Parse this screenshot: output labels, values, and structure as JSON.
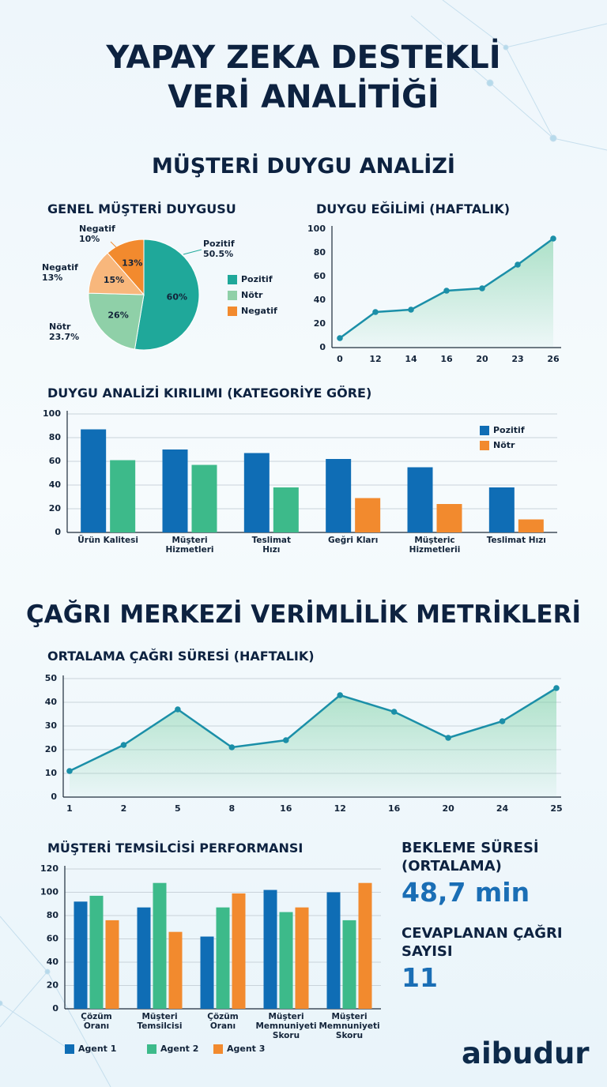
{
  "header": {
    "title": "YAPAY ZEKA DESTEKLİ\nVERİ ANALİTİĞİ"
  },
  "sections": [
    "MÜŞTERİ DUYGU ANALİZİ",
    "ÇAĞRI MERKEZİ VERİMLİLİK METRİKLERİ"
  ],
  "chart_data": [
    {
      "type": "pie",
      "title": "GENEL MÜŞTERİ DUYGUSU",
      "categories": [
        "Pozitif",
        "Nötr",
        "Negatif",
        "Negatif"
      ],
      "values": [
        60,
        26,
        15,
        13
      ],
      "value_labels": [
        "60%",
        "26%",
        "15%",
        "13%"
      ],
      "slice_notes": [
        "50.5%",
        "23.7%",
        "13%",
        "10%"
      ],
      "colors": [
        "#1fa89a",
        "#8fd0a8",
        "#f8b77c",
        "#f28a2e"
      ],
      "legend": [
        {
          "name": "Pozitif",
          "color": "#1fa89a"
        },
        {
          "name": "Nötr",
          "color": "#8fd0a8"
        },
        {
          "name": "Negatif",
          "color": "#f28a2e"
        }
      ]
    },
    {
      "type": "line",
      "title": "DUYGU EĞİLİMİ (HAFTALIK)",
      "categories": [
        "0",
        "12",
        "14",
        "16",
        "20",
        "23",
        "26"
      ],
      "values": [
        8,
        30,
        32,
        48,
        50,
        70,
        92
      ],
      "color": "#1b8fa8",
      "ylim": [
        0,
        100
      ],
      "yticks": [
        0,
        20,
        40,
        60,
        80,
        100
      ],
      "grid": false
    },
    {
      "type": "bar",
      "title": "DUYGU ANALİZİ KIRILIMI (KATEGORİYE GÖRE)",
      "categories": [
        "Ürün Kalitesi",
        "Müşteri\nHizmetleri",
        "Teslimat\nHızı",
        "Geğri Kları",
        "Müşteric\nHizmetlerii",
        "Teslimat Hızı"
      ],
      "series": [
        {
          "name": "Pozitif",
          "color": "#0f6db5",
          "values": [
            87,
            70,
            67,
            62,
            55,
            38
          ]
        },
        {
          "name": "Nötr",
          "color": "#f28a2e",
          "values": [
            61,
            57,
            38,
            29,
            24,
            11
          ],
          "colors": [
            "#3dba8a",
            "#3dba8a",
            "#3dba8a",
            "#f28a2e",
            "#f28a2e",
            "#f28a2e"
          ]
        }
      ],
      "ylim": [
        0,
        100
      ],
      "yticks": [
        0,
        20,
        40,
        60,
        80,
        100
      ],
      "grid": true
    },
    {
      "type": "line",
      "title": "ORTALAMA ÇAĞRI SÜRESİ (HAFTALIK)",
      "categories": [
        "1",
        "2",
        "5",
        "8",
        "16",
        "12",
        "16",
        "20",
        "24",
        "25"
      ],
      "values": [
        11,
        22,
        37,
        21,
        24,
        43,
        36,
        25,
        32,
        46
      ],
      "color": "#1b8fa8",
      "ylim": [
        0,
        50
      ],
      "yticks": [
        0,
        10,
        20,
        30,
        40,
        50
      ],
      "grid": true
    },
    {
      "type": "bar",
      "title": "MÜŞTERİ TEMSİLCİSİ PERFORMANSI",
      "categories": [
        "Çözüm\nOranı",
        "Müşteri\nTemsilcisi",
        "Çözüm\nOranı",
        "Müşteri\nMemnuniyeti\nSkoru",
        "Müşteri\nMemnuniyeti\nSkoru"
      ],
      "series": [
        {
          "name": "Agent 1",
          "color": "#0f6db5",
          "values": [
            92,
            87,
            62,
            102,
            100
          ]
        },
        {
          "name": "Agent 2",
          "color": "#3dba8a",
          "values": [
            97,
            108,
            87,
            83,
            76
          ]
        },
        {
          "name": "Agent 3",
          "color": "#f28a2e",
          "values": [
            76,
            66,
            99,
            87,
            108
          ]
        }
      ],
      "ylim": [
        0,
        120
      ],
      "yticks": [
        0,
        20,
        40,
        60,
        80,
        100,
        120
      ],
      "grid": true
    }
  ],
  "kpis": [
    {
      "label": "BEKLEME SÜRESİ (ORTALAMA)",
      "value": "48,7 min"
    },
    {
      "label": "CEVAPLANAN ÇAĞRI SAYISI",
      "value": "11"
    }
  ],
  "brand": "aibudur"
}
